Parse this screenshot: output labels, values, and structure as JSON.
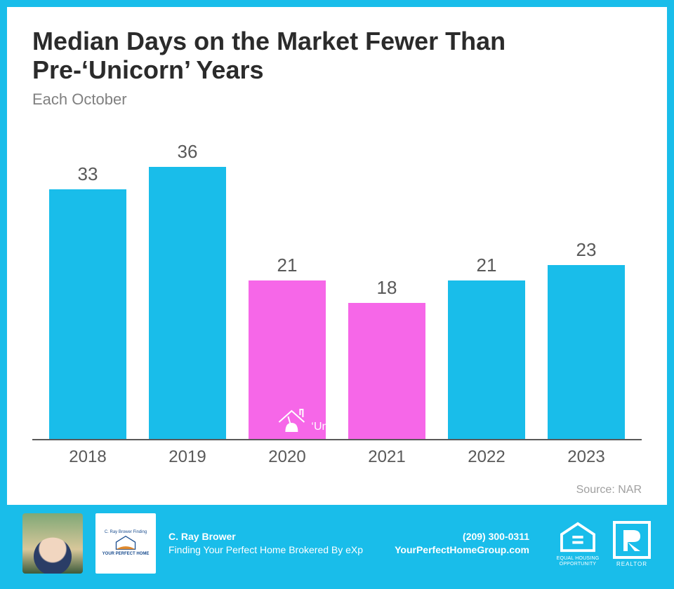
{
  "accent_color": "#19bdea",
  "chart": {
    "type": "bar",
    "title": "Median Days on the Market Fewer Than Pre-‘Unicorn’ Years",
    "subtitle": "Each October",
    "categories": [
      "2018",
      "2019",
      "2020",
      "2021",
      "2022",
      "2023"
    ],
    "values": [
      33,
      36,
      21,
      18,
      21,
      23
    ],
    "bar_colors": [
      "#19bdea",
      "#19bdea",
      "#f667e8",
      "#f667e8",
      "#19bdea",
      "#19bdea"
    ],
    "ymax": 40,
    "value_fontsize": 26,
    "value_color": "#595959",
    "xlabel_fontsize": 24,
    "xlabel_color": "#595959",
    "title_fontsize": 36,
    "title_color": "#2b2b2b",
    "subtitle_fontsize": 22,
    "subtitle_color": "#808080",
    "baseline_color": "#595959",
    "bar_width_pct": 78,
    "unicorn_label": "‘Unicorn’ Years",
    "unicorn_label_color": "#ffffff",
    "source": "Source: NAR",
    "source_color": "#a0a0a0"
  },
  "footer": {
    "background": "#19bdea",
    "agent_name": "C. Ray Brower",
    "agent_tagline": "Finding Your Perfect Home Brokered By eXp",
    "phone": "(209) 300-0311",
    "website": "YourPerfectHomeGroup.com",
    "logo_line1": "C. Ray Brower Finding",
    "logo_line2": "YOUR PERFECT HOME",
    "eho_label": "EQUAL HOUSING\nOPPORTUNITY",
    "realtor_label": "REALTOR"
  }
}
